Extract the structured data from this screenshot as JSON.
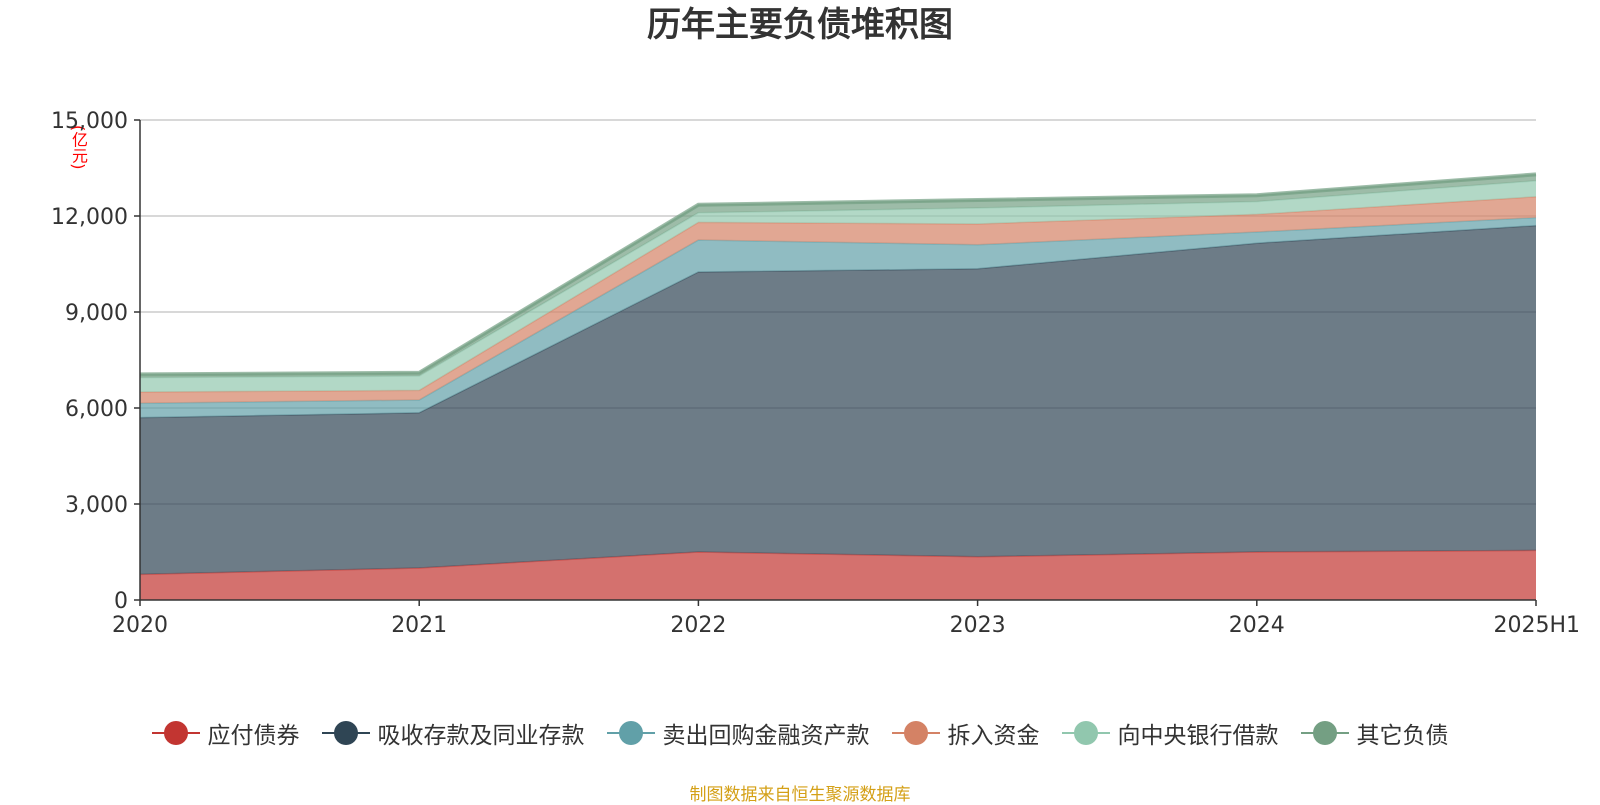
{
  "chart_data": {
    "type": "area",
    "stacked": true,
    "title": "历年主要负债堆积图",
    "unit": "(亿元)",
    "categories": [
      "2020",
      "2021",
      "2022",
      "2023",
      "2024",
      "2025H1"
    ],
    "ylim": [
      0,
      15000
    ],
    "yticks": [
      0,
      3000,
      6000,
      9000,
      12000,
      15000
    ],
    "ytick_labels": [
      "0",
      "3,000",
      "6,000",
      "9,000",
      "12,000",
      "15,000"
    ],
    "grid": true,
    "legend_position": "bottom",
    "series": [
      {
        "name": "应付债券",
        "color": "#c23531",
        "values": [
          800,
          1000,
          1500,
          1350,
          1500,
          1550
        ]
      },
      {
        "name": "吸收存款及同业存款",
        "color": "#2f4554",
        "values": [
          4900,
          4850,
          8750,
          9000,
          9650,
          10150
        ]
      },
      {
        "name": "卖出回购金融资产款",
        "color": "#61a0a8",
        "values": [
          450,
          400,
          1000,
          750,
          350,
          250
        ]
      },
      {
        "name": "拆入资金",
        "color": "#d48265",
        "values": [
          350,
          300,
          550,
          650,
          550,
          650
        ]
      },
      {
        "name": "向中央银行借款",
        "color": "#91c7ae",
        "values": [
          450,
          450,
          300,
          500,
          400,
          500
        ]
      },
      {
        "name": "其它负债",
        "color": "#749f83",
        "values": [
          100,
          100,
          250,
          250,
          200,
          200
        ]
      }
    ]
  },
  "source_text": "制图数据来自恒生聚源数据库"
}
